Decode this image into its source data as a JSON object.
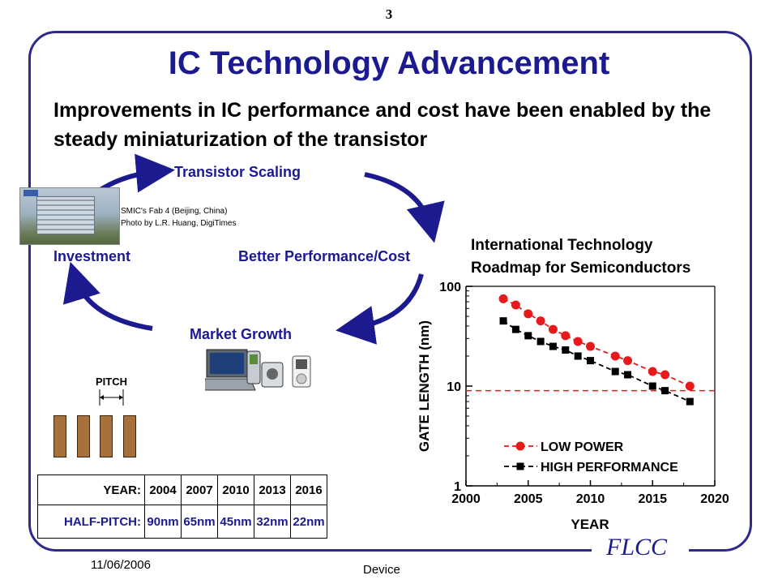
{
  "slide_number": "3",
  "title": "IC Technology Advancement",
  "subtitle": "Improvements in IC performance and cost have been enabled by the steady miniaturization of the transistor",
  "cycle": {
    "scaling": "Transistor Scaling",
    "performance": "Better Performance/Cost",
    "market": "Market Growth",
    "investment": "Investment"
  },
  "photo_caption": {
    "line1": "SMIC's Fab 4 (Beijing, China)",
    "line2": "Photo by L.R. Huang, DigiTimes"
  },
  "itrs_title": {
    "line1": "International Technology",
    "line2": "Roadmap for Semiconductors"
  },
  "pitch_label": "PITCH",
  "table": {
    "year_label": "YEAR:",
    "pitch_label": "HALF-PITCH:",
    "years": [
      "2004",
      "2007",
      "2010",
      "2013",
      "2016"
    ],
    "pitches": [
      "90nm",
      "65nm",
      "45nm",
      "32nm",
      "22nm"
    ]
  },
  "footer": {
    "date": "11/06/2006",
    "center": "Device",
    "logo": "FLCC"
  },
  "colors": {
    "accent": "#1c1a8f",
    "low_power": "#e8191b",
    "high_performance": "#000000"
  },
  "chart_data": {
    "type": "line",
    "xlabel": "YEAR",
    "ylabel": "GATE LENGTH (nm)",
    "xlim": [
      2000,
      2020
    ],
    "ylim": [
      1,
      100
    ],
    "y_scale": "log",
    "x_ticks": [
      "2000",
      "2005",
      "2010",
      "2015",
      "2020"
    ],
    "y_ticks": [
      "1",
      "10",
      "100"
    ],
    "reference_line_y": 9,
    "legend_position": "bottom-right",
    "series": [
      {
        "name": "LOW POWER",
        "color": "#e8191b",
        "x": [
          2003,
          2004,
          2005,
          2006,
          2007,
          2008,
          2009,
          2010,
          2012,
          2013,
          2015,
          2016,
          2018
        ],
        "y": [
          75,
          65,
          53,
          45,
          37,
          32,
          28,
          25,
          20,
          18,
          14,
          13,
          10
        ]
      },
      {
        "name": "HIGH PERFORMANCE",
        "color": "#000000",
        "x": [
          2003,
          2004,
          2005,
          2006,
          2007,
          2008,
          2009,
          2010,
          2012,
          2013,
          2015,
          2016,
          2018
        ],
        "y": [
          45,
          37,
          32,
          28,
          25,
          23,
          20,
          18,
          14,
          13,
          10,
          9,
          7
        ]
      }
    ]
  }
}
